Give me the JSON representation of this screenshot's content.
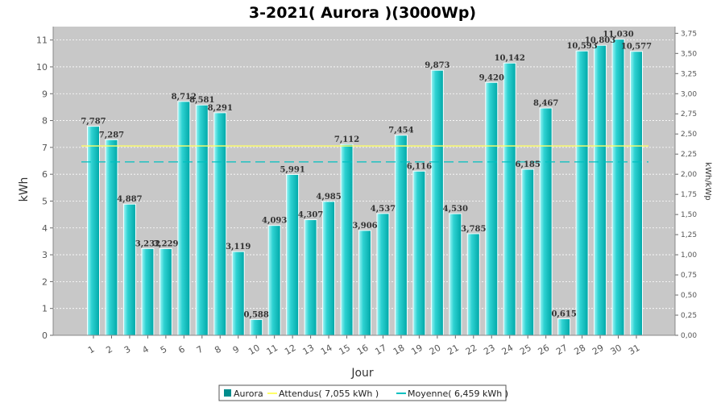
{
  "chart_data": {
    "type": "bar",
    "title": "3-2021( Aurora )(3000Wp)",
    "xlabel": "Jour",
    "ylabel": "kWh",
    "ylabel_right": "kWh/kWp",
    "ylim": [
      0,
      11.5
    ],
    "ylim_right": [
      0,
      3.8333
    ],
    "y_ticks": [
      "0",
      "1",
      "2",
      "3",
      "4",
      "5",
      "6",
      "7",
      "8",
      "9",
      "10",
      "11"
    ],
    "y_ticks_right": [
      "0,00",
      "0,25",
      "0,50",
      "0,75",
      "1,00",
      "1,25",
      "1,50",
      "1,75",
      "2,00",
      "2,25",
      "2,50",
      "2,75",
      "3,00",
      "3,25",
      "3,50",
      "3,75"
    ],
    "categories": [
      "1",
      "2",
      "3",
      "4",
      "5",
      "6",
      "7",
      "8",
      "9",
      "10",
      "11",
      "12",
      "13",
      "14",
      "15",
      "16",
      "17",
      "18",
      "19",
      "20",
      "21",
      "22",
      "23",
      "24",
      "25",
      "26",
      "27",
      "28",
      "29",
      "30",
      "31"
    ],
    "series": [
      {
        "name": "Aurora",
        "color": "#00b8b8",
        "values": [
          7.787,
          7.287,
          4.887,
          3.232,
          3.229,
          8.712,
          8.581,
          8.291,
          3.119,
          0.588,
          4.093,
          5.991,
          4.307,
          4.985,
          7.112,
          3.906,
          4.537,
          7.454,
          6.116,
          9.873,
          4.53,
          3.785,
          9.42,
          10.142,
          6.185,
          8.467,
          0.615,
          10.593,
          10.803,
          11.03,
          10.577
        ],
        "labels": [
          "7,787",
          "7,287",
          "4,887",
          "3,232",
          "3,229",
          "8,712",
          "8,581",
          "8,291",
          "3,119",
          "0,588",
          "4,093",
          "5,991",
          "4,307",
          "4,985",
          "7,112",
          "3,906",
          "4,537",
          "7,454",
          "6,116",
          "9,873",
          "4,530",
          "3,785",
          "9,420",
          "10,142",
          "6,185",
          "8,467",
          "0,615",
          "10,593",
          "10,803",
          "11,030",
          "10,577"
        ]
      }
    ],
    "reference_lines": [
      {
        "name": "Attendus( 7,055 kWh )",
        "value": 7.055,
        "color": "#ffff66",
        "style": "solid"
      },
      {
        "name": "Moyenne( 6,459 kWh )",
        "value": 6.459,
        "color": "#00c0c0",
        "style": "dashed"
      }
    ],
    "grid": true,
    "legend_position": "bottom"
  }
}
